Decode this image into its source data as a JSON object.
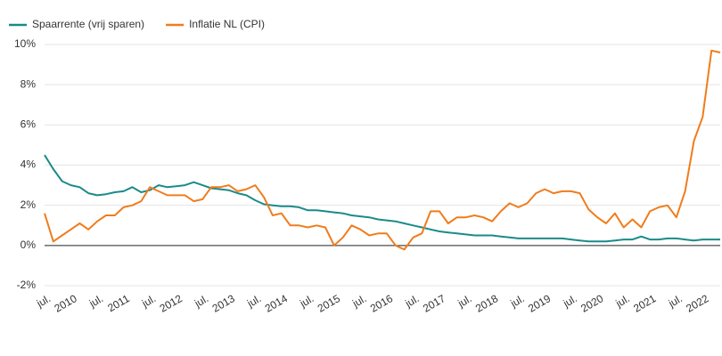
{
  "chart_data": {
    "type": "line",
    "categories": [
      "jul.",
      null,
      null,
      "2010",
      null,
      null,
      "jul.",
      null,
      null,
      "2011",
      null,
      null,
      "jul.",
      null,
      null,
      "2012",
      null,
      null,
      "jul.",
      null,
      null,
      "2013",
      null,
      null,
      "jul.",
      null,
      null,
      "2014",
      null,
      null,
      "jul.",
      null,
      null,
      "2015",
      null,
      null,
      "jul.",
      null,
      null,
      "2016",
      null,
      null,
      "jul.",
      null,
      null,
      "2017",
      null,
      null,
      "jul.",
      null,
      null,
      "2018",
      null,
      null,
      "jul.",
      null,
      null,
      "2019",
      null,
      null,
      "jul.",
      null,
      null,
      "2020",
      null,
      null,
      "jul.",
      null,
      null,
      "2021",
      null,
      null,
      "jul.",
      null,
      null,
      "2022",
      null,
      null
    ],
    "series": [
      {
        "name": "Spaarrente (vrij sparen)",
        "color": "#1b8a8a",
        "values": [
          4.5,
          3.8,
          3.2,
          3.0,
          2.9,
          2.6,
          2.5,
          2.55,
          2.65,
          2.7,
          2.9,
          2.65,
          2.75,
          3.0,
          2.9,
          2.95,
          3.0,
          3.15,
          3.0,
          2.85,
          2.8,
          2.75,
          2.6,
          2.5,
          2.25,
          2.05,
          2.0,
          1.95,
          1.95,
          1.9,
          1.75,
          1.75,
          1.7,
          1.65,
          1.6,
          1.5,
          1.45,
          1.4,
          1.3,
          1.25,
          1.2,
          1.1,
          1.0,
          0.9,
          0.8,
          0.7,
          0.65,
          0.6,
          0.55,
          0.5,
          0.5,
          0.5,
          0.45,
          0.4,
          0.35,
          0.35,
          0.35,
          0.35,
          0.35,
          0.35,
          0.3,
          0.25,
          0.2,
          0.2,
          0.2,
          0.25,
          0.3,
          0.3,
          0.45,
          0.3,
          0.3,
          0.35,
          0.35,
          0.3,
          0.25,
          0.3,
          0.3,
          0.3
        ]
      },
      {
        "name": "Inflatie NL (CPI)",
        "color": "#f07c1c",
        "values": [
          1.6,
          0.2,
          0.5,
          0.8,
          1.1,
          0.8,
          1.2,
          1.5,
          1.5,
          1.9,
          2.0,
          2.2,
          2.9,
          2.7,
          2.5,
          2.5,
          2.5,
          2.2,
          2.3,
          2.9,
          2.9,
          3.0,
          2.7,
          2.8,
          3.0,
          2.4,
          1.5,
          1.6,
          1.0,
          1.0,
          0.9,
          1.0,
          0.9,
          0.0,
          0.4,
          1.0,
          0.8,
          0.5,
          0.6,
          0.6,
          0.0,
          -0.2,
          0.4,
          0.6,
          1.7,
          1.7,
          1.1,
          1.4,
          1.4,
          1.5,
          1.4,
          1.2,
          1.7,
          2.1,
          1.9,
          2.1,
          2.6,
          2.8,
          2.6,
          2.7,
          2.7,
          2.6,
          1.8,
          1.4,
          1.1,
          1.6,
          0.9,
          1.3,
          0.9,
          1.7,
          1.9,
          2.0,
          1.4,
          2.7,
          5.2,
          6.4,
          9.7,
          9.6
        ]
      }
    ],
    "ylim": [
      -2,
      10
    ],
    "yticks": [
      {
        "value": -2,
        "label": "-2%"
      },
      {
        "value": 0,
        "label": "0%"
      },
      {
        "value": 2,
        "label": "2%"
      },
      {
        "value": 4,
        "label": "4%"
      },
      {
        "value": 6,
        "label": "6%"
      },
      {
        "value": 8,
        "label": "8%"
      },
      {
        "value": 10,
        "label": "10%"
      }
    ],
    "grid": true,
    "legend": "top-left"
  }
}
